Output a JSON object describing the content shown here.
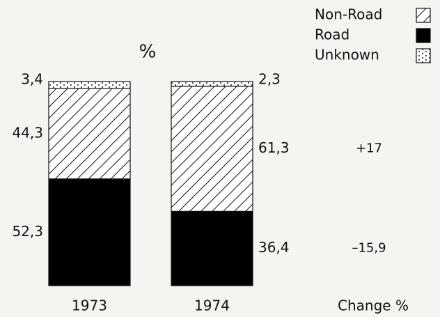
{
  "chart_data": {
    "type": "bar",
    "stacked": true,
    "title": "%",
    "categories": [
      "1973",
      "1974"
    ],
    "ylim": [
      0,
      100
    ],
    "series": [
      {
        "name": "Non-Road",
        "color": "#111111",
        "pattern": "hatch",
        "values": [
          44.3,
          61.3
        ],
        "value_labels": [
          "44,3",
          "61,3"
        ],
        "change": 17,
        "change_label": "+17"
      },
      {
        "name": "Road",
        "color": "#000000",
        "pattern": "solid",
        "values": [
          52.3,
          36.4
        ],
        "value_labels": [
          "52,3",
          "36,4"
        ],
        "change": -15.9,
        "change_label": "–15,9"
      },
      {
        "name": "Unknown",
        "color": "#111111",
        "pattern": "dots",
        "values": [
          3.4,
          2.3
        ],
        "value_labels": [
          "3,4",
          "2,3"
        ]
      }
    ],
    "change_title": "Change %"
  }
}
